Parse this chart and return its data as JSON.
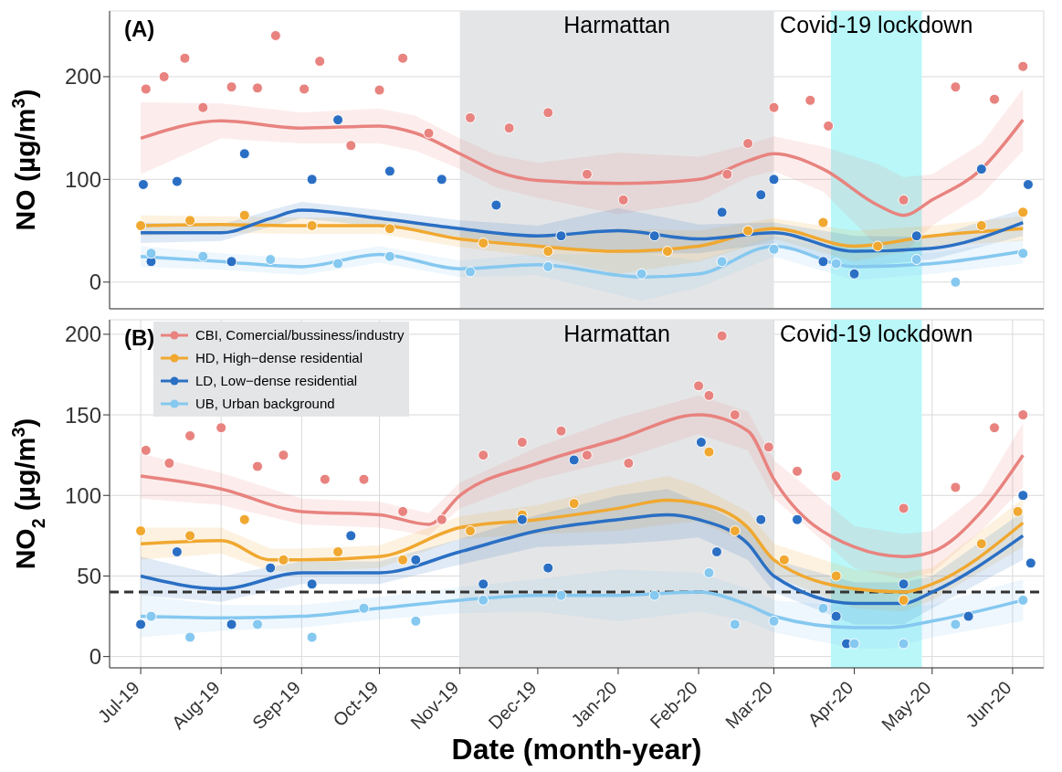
{
  "chart_data": [
    {
      "type": "scatter",
      "ylabel": "NO (µg/m$^{3}$)",
      "annotations": [
        "(A)"
      ],
      "xlim": [
        "2019-06-19",
        "2020-06-13"
      ],
      "ylim": [
        -26,
        264
      ],
      "yticks": [
        0,
        100,
        200
      ],
      "xticks": [
        {
          "value": "2019-07-01",
          "label": null
        },
        {
          "value": "2019-08-01",
          "label": null
        },
        {
          "value": "2019-09-01",
          "label": null
        },
        {
          "value": "2019-10-01",
          "label": null
        },
        {
          "value": "2019-11-01",
          "label": null
        },
        {
          "value": "2019-12-01",
          "label": null
        },
        {
          "value": "2020-01-01",
          "label": null
        },
        {
          "value": "2020-02-01",
          "label": null
        },
        {
          "value": "2020-03-01",
          "label": null
        },
        {
          "value": "2020-04-01",
          "label": null
        },
        {
          "value": "2020-05-01",
          "label": null
        },
        {
          "value": "2020-06-01",
          "label": null
        }
      ],
      "tick_labels": "y",
      "grid": true,
      "bands": [
        {
          "axis": "x",
          "from": "2019-11-01",
          "to": "2020-03-01",
          "label": "Harmattan",
          "color": "#e4e5e7"
        },
        {
          "axis": "x",
          "from": "2020-03-23",
          "to": "2020-04-27",
          "label": "Covid-19 lockdown",
          "color": "#b9f7f9"
        }
      ],
      "series": [
        {
          "marker": "circle",
          "color": "#e8837f",
          "x": [
            "2019-07-03",
            "2019-07-10",
            "2019-07-18",
            "2019-07-25",
            "2019-08-05",
            "2019-08-15",
            "2019-08-22",
            "2019-09-02",
            "2019-09-08",
            "2019-09-20",
            "2019-10-01",
            "2019-10-10",
            "2019-10-20",
            "2019-11-05",
            "2019-11-20",
            "2019-12-05",
            "2019-12-20",
            "2020-01-03",
            "2020-02-12",
            "2020-02-20",
            "2020-03-01",
            "2020-03-15",
            "2020-03-22",
            "2020-04-20",
            "2020-05-10",
            "2020-05-25",
            "2020-06-05"
          ],
          "values": [
            188,
            200,
            218,
            170,
            190,
            189,
            240,
            188,
            215,
            133,
            187,
            218,
            145,
            160,
            150,
            165,
            105,
            80,
            105,
            135,
            170,
            177,
            152,
            80,
            190,
            178,
            210
          ]
        },
        {
          "marker": "circle",
          "color": "#f0a830",
          "x": [
            "2019-07-01",
            "2019-07-20",
            "2019-08-10",
            "2019-09-05",
            "2019-10-05",
            "2019-11-10",
            "2019-12-05",
            "2020-01-20",
            "2020-02-20",
            "2020-03-20",
            "2020-04-10",
            "2020-05-20",
            "2020-06-05"
          ],
          "values": [
            55,
            60,
            65,
            55,
            52,
            38,
            30,
            30,
            50,
            58,
            35,
            55,
            68
          ]
        },
        {
          "marker": "circle",
          "color": "#2a6fc4",
          "x": [
            "2019-07-02",
            "2019-07-05",
            "2019-07-15",
            "2019-08-05",
            "2019-08-10",
            "2019-09-05",
            "2019-09-15",
            "2019-10-05",
            "2019-10-25",
            "2019-11-15",
            "2019-12-10",
            "2020-01-15",
            "2020-02-10",
            "2020-02-25",
            "2020-03-01",
            "2020-03-20",
            "2020-04-01",
            "2020-04-25",
            "2020-05-20",
            "2020-06-07"
          ],
          "values": [
            95,
            20,
            98,
            20,
            125,
            100,
            158,
            108,
            100,
            75,
            45,
            45,
            68,
            85,
            100,
            20,
            8,
            45,
            110,
            95
          ]
        },
        {
          "marker": "circle",
          "color": "#85c8f0",
          "x": [
            "2019-07-05",
            "2019-07-25",
            "2019-08-20",
            "2019-09-15",
            "2019-10-05",
            "2019-11-05",
            "2019-12-05",
            "2020-01-10",
            "2020-02-10",
            "2020-03-01",
            "2020-03-25",
            "2020-04-25",
            "2020-05-10",
            "2020-06-05"
          ],
          "values": [
            28,
            25,
            22,
            18,
            25,
            10,
            15,
            8,
            20,
            32,
            18,
            22,
            0,
            28
          ]
        },
        {
          "type": "line",
          "color": "#e8837f",
          "x": [
            "2019-07-01",
            "2019-08-01",
            "2019-09-01",
            "2019-10-01",
            "2019-10-15",
            "2019-11-01",
            "2019-11-15",
            "2019-12-01",
            "2020-01-01",
            "2020-02-01",
            "2020-02-20",
            "2020-03-01",
            "2020-03-20",
            "2020-04-10",
            "2020-04-20",
            "2020-05-01",
            "2020-05-20",
            "2020-06-05"
          ],
          "values": [
            140,
            157,
            150,
            152,
            145,
            125,
            108,
            99,
            96,
            100,
            118,
            125,
            110,
            75,
            65,
            80,
            110,
            158
          ],
          "lower": [
            105,
            140,
            135,
            135,
            128,
            110,
            92,
            82,
            66,
            78,
            102,
            108,
            88,
            35,
            28,
            55,
            85,
            128
          ],
          "upper": [
            175,
            174,
            165,
            169,
            162,
            140,
            124,
            116,
            126,
            122,
            134,
            142,
            132,
            115,
            102,
            105,
            135,
            188
          ]
        },
        {
          "type": "line",
          "color": "#f0a830",
          "x": [
            "2019-07-01",
            "2019-08-01",
            "2019-09-01",
            "2019-10-01",
            "2019-11-01",
            "2019-12-01",
            "2020-01-01",
            "2020-02-01",
            "2020-03-01",
            "2020-04-01",
            "2020-05-01",
            "2020-06-05"
          ],
          "values": [
            55,
            56,
            55,
            55,
            42,
            35,
            30,
            35,
            52,
            35,
            45,
            52
          ],
          "lower": [
            45,
            48,
            47,
            47,
            34,
            25,
            8,
            20,
            42,
            20,
            35,
            40
          ],
          "upper": [
            65,
            64,
            63,
            63,
            50,
            45,
            52,
            50,
            62,
            50,
            55,
            64
          ]
        },
        {
          "type": "line",
          "color": "#2a6fc4",
          "x": [
            "2019-07-01",
            "2019-08-01",
            "2019-08-20",
            "2019-09-01",
            "2019-10-01",
            "2019-11-01",
            "2019-12-01",
            "2020-01-01",
            "2020-02-01",
            "2020-03-01",
            "2020-04-01",
            "2020-05-01",
            "2020-06-05"
          ],
          "values": [
            48,
            48,
            62,
            70,
            62,
            52,
            45,
            50,
            42,
            48,
            30,
            33,
            58
          ],
          "lower": [
            38,
            40,
            54,
            62,
            54,
            44,
            35,
            28,
            28,
            38,
            15,
            22,
            45
          ],
          "upper": [
            58,
            56,
            70,
            78,
            70,
            60,
            55,
            72,
            56,
            58,
            45,
            44,
            71
          ]
        },
        {
          "type": "line",
          "color": "#85c8f0",
          "x": [
            "2019-07-01",
            "2019-08-01",
            "2019-09-01",
            "2019-10-01",
            "2019-11-01",
            "2019-12-01",
            "2020-01-10",
            "2020-02-01",
            "2020-03-01",
            "2020-04-01",
            "2020-05-01",
            "2020-06-05"
          ],
          "values": [
            25,
            20,
            15,
            27,
            13,
            17,
            5,
            8,
            35,
            15,
            18,
            30
          ],
          "lower": [
            15,
            12,
            7,
            19,
            5,
            7,
            -18,
            -5,
            25,
            2,
            8,
            18
          ],
          "upper": [
            35,
            28,
            23,
            35,
            21,
            27,
            28,
            21,
            45,
            28,
            28,
            42
          ]
        }
      ]
    },
    {
      "type": "scatter",
      "ylabel": "NO$_{2}$ (µg/m$^{3}$)",
      "xlabel": "Date (month-year)",
      "annotations": [
        "(B)"
      ],
      "xlim": [
        "2019-06-19",
        "2020-06-13"
      ],
      "ylim": [
        -7,
        209
      ],
      "yticks": [
        0,
        50,
        100,
        150,
        200
      ],
      "xticks": [
        {
          "value": "2019-07-01",
          "label": "Jul-19"
        },
        {
          "value": "2019-08-01",
          "label": "Aug-19"
        },
        {
          "value": "2019-09-01",
          "label": "Sep-19"
        },
        {
          "value": "2019-10-01",
          "label": "Oct-19"
        },
        {
          "value": "2019-11-01",
          "label": "Nov-19"
        },
        {
          "value": "2019-12-01",
          "label": "Dec-19"
        },
        {
          "value": "2020-01-01",
          "label": "Jan-20"
        },
        {
          "value": "2020-02-01",
          "label": "Feb-20"
        },
        {
          "value": "2020-03-01",
          "label": "Mar-20"
        },
        {
          "value": "2020-04-01",
          "label": "Apr-20"
        },
        {
          "value": "2020-05-01",
          "label": "May-20"
        },
        {
          "value": "2020-06-01",
          "label": "Jun-20"
        }
      ],
      "grid": true,
      "legend": "top left",
      "bands": [
        {
          "axis": "x",
          "from": "2019-11-01",
          "to": "2020-03-01",
          "label": "Harmattan",
          "color": "#e4e5e7"
        },
        {
          "axis": "x",
          "from": "2020-03-23",
          "to": "2020-04-27",
          "label": "Covid-19 lockdown",
          "color": "#b9f7f9"
        }
      ],
      "ref_lines": [
        {
          "axis": "y",
          "value": 40,
          "color": "#333333",
          "line_style": "dashed"
        }
      ],
      "series": [
        {
          "marker": "circle",
          "color": "#e8837f",
          "x": [
            "2019-07-03",
            "2019-07-12",
            "2019-07-20",
            "2019-08-01",
            "2019-08-15",
            "2019-08-25",
            "2019-09-10",
            "2019-09-25",
            "2019-10-10",
            "2019-10-25",
            "2019-11-10",
            "2019-11-25",
            "2019-12-10",
            "2019-12-20",
            "2020-01-05",
            "2020-02-01",
            "2020-02-05",
            "2020-02-10",
            "2020-02-15",
            "2020-02-28",
            "2020-03-10",
            "2020-03-25",
            "2020-04-20",
            "2020-05-10",
            "2020-05-25",
            "2020-06-05"
          ],
          "values": [
            128,
            120,
            137,
            142,
            118,
            125,
            110,
            110,
            90,
            85,
            125,
            133,
            140,
            125,
            120,
            168,
            162,
            199,
            150,
            130,
            115,
            112,
            92,
            105,
            142,
            150
          ]
        },
        {
          "marker": "circle",
          "color": "#f0a830",
          "x": [
            "2019-07-01",
            "2019-07-20",
            "2019-08-10",
            "2019-08-25",
            "2019-09-15",
            "2019-10-10",
            "2019-11-05",
            "2019-11-25",
            "2019-12-15",
            "2020-02-05",
            "2020-02-15",
            "2020-03-05",
            "2020-03-25",
            "2020-04-20",
            "2020-05-20",
            "2020-06-03"
          ],
          "values": [
            78,
            75,
            85,
            60,
            65,
            60,
            78,
            88,
            95,
            127,
            78,
            60,
            50,
            35,
            70,
            90
          ]
        },
        {
          "marker": "circle",
          "color": "#2a6fc4",
          "x": [
            "2019-07-01",
            "2019-07-15",
            "2019-08-05",
            "2019-08-20",
            "2019-09-05",
            "2019-09-20",
            "2019-10-15",
            "2019-11-10",
            "2019-11-25",
            "2019-12-05",
            "2019-12-15",
            "2020-02-02",
            "2020-02-08",
            "2020-02-25",
            "2020-03-10",
            "2020-03-25",
            "2020-03-29",
            "2020-04-20",
            "2020-05-15",
            "2020-06-05",
            "2020-06-08"
          ],
          "values": [
            20,
            65,
            20,
            55,
            45,
            75,
            60,
            45,
            85,
            55,
            122,
            133,
            65,
            85,
            85,
            25,
            8,
            45,
            25,
            100,
            58
          ]
        },
        {
          "marker": "circle",
          "color": "#85c8f0",
          "x": [
            "2019-07-05",
            "2019-07-20",
            "2019-08-15",
            "2019-09-05",
            "2019-09-25",
            "2019-10-15",
            "2019-11-10",
            "2019-12-10",
            "2020-01-15",
            "2020-02-05",
            "2020-02-15",
            "2020-03-01",
            "2020-03-20",
            "2020-04-01",
            "2020-04-20",
            "2020-05-10",
            "2020-06-05"
          ],
          "values": [
            25,
            12,
            20,
            12,
            30,
            22,
            35,
            38,
            38,
            52,
            20,
            22,
            30,
            8,
            8,
            20,
            35
          ]
        },
        {
          "type": "line",
          "name": "CBI, Comercial/bussiness/industry",
          "color": "#e8837f",
          "x": [
            "2019-07-01",
            "2019-08-01",
            "2019-09-01",
            "2019-10-01",
            "2019-10-20",
            "2019-11-01",
            "2019-12-01",
            "2020-01-01",
            "2020-02-01",
            "2020-02-20",
            "2020-03-01",
            "2020-04-01",
            "2020-04-20",
            "2020-05-01",
            "2020-05-20",
            "2020-06-05"
          ],
          "values": [
            112,
            104,
            90,
            88,
            82,
            100,
            120,
            135,
            150,
            140,
            110,
            68,
            62,
            65,
            90,
            125
          ],
          "lower": [
            98,
            94,
            82,
            80,
            75,
            92,
            110,
            122,
            138,
            128,
            98,
            55,
            48,
            52,
            78,
            105
          ],
          "upper": [
            126,
            114,
            98,
            96,
            89,
            108,
            130,
            148,
            162,
            152,
            122,
            81,
            76,
            78,
            102,
            145
          ]
        },
        {
          "type": "line",
          "name": "HD, High−dense residential",
          "color": "#f0a830",
          "x": [
            "2019-07-01",
            "2019-08-01",
            "2019-08-20",
            "2019-09-01",
            "2019-10-01",
            "2019-11-01",
            "2019-12-01",
            "2020-01-01",
            "2020-01-20",
            "2020-02-01",
            "2020-02-20",
            "2020-03-01",
            "2020-04-01",
            "2020-04-20",
            "2020-05-01",
            "2020-06-05"
          ],
          "values": [
            70,
            72,
            60,
            60,
            62,
            80,
            85,
            92,
            97,
            95,
            80,
            60,
            42,
            40,
            45,
            83
          ],
          "lower": [
            60,
            64,
            53,
            53,
            55,
            73,
            76,
            78,
            82,
            84,
            70,
            50,
            30,
            28,
            35,
            68
          ],
          "upper": [
            80,
            80,
            67,
            67,
            69,
            87,
            94,
            106,
            112,
            106,
            90,
            70,
            54,
            52,
            55,
            98
          ]
        },
        {
          "type": "line",
          "name": "LD, Low−dense residential",
          "color": "#2a6fc4",
          "x": [
            "2019-07-01",
            "2019-08-01",
            "2019-09-01",
            "2019-10-01",
            "2019-11-01",
            "2019-12-01",
            "2020-01-01",
            "2020-01-20",
            "2020-02-01",
            "2020-02-20",
            "2020-03-01",
            "2020-04-01",
            "2020-04-20",
            "2020-05-01",
            "2020-06-05"
          ],
          "values": [
            50,
            42,
            52,
            52,
            65,
            78,
            85,
            88,
            85,
            70,
            50,
            33,
            33,
            40,
            75
          ],
          "lower": [
            38,
            34,
            45,
            45,
            57,
            68,
            70,
            72,
            74,
            60,
            40,
            20,
            20,
            30,
            60
          ],
          "upper": [
            62,
            50,
            59,
            59,
            73,
            88,
            100,
            104,
            96,
            80,
            60,
            46,
            46,
            50,
            90
          ]
        },
        {
          "type": "line",
          "name": "UB, Urban background",
          "color": "#85c8f0",
          "x": [
            "2019-07-01",
            "2019-08-01",
            "2019-09-01",
            "2019-10-01",
            "2019-11-01",
            "2019-12-01",
            "2020-01-01",
            "2020-02-01",
            "2020-02-20",
            "2020-03-01",
            "2020-04-01",
            "2020-04-15",
            "2020-05-01",
            "2020-06-05"
          ],
          "values": [
            25,
            24,
            25,
            30,
            35,
            38,
            38,
            40,
            32,
            25,
            18,
            18,
            22,
            35
          ],
          "lower": [
            12,
            16,
            18,
            23,
            27,
            28,
            22,
            28,
            22,
            15,
            5,
            5,
            12,
            22
          ],
          "upper": [
            38,
            32,
            32,
            37,
            43,
            48,
            54,
            52,
            42,
            35,
            31,
            31,
            32,
            48
          ]
        }
      ]
    }
  ]
}
